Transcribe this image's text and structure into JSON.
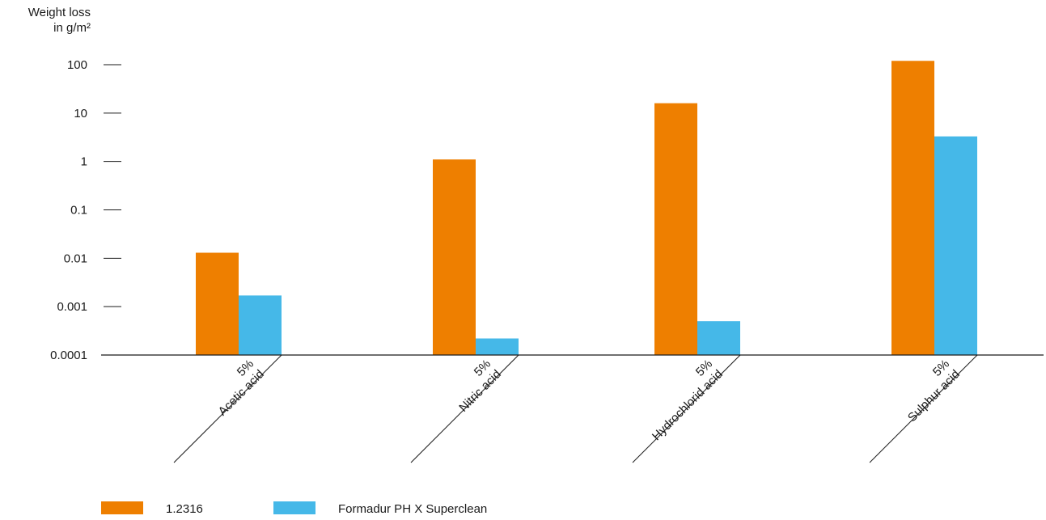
{
  "chart_data": {
    "type": "bar",
    "ylabel": [
      "Weight loss",
      "in g/m²"
    ],
    "yscale": "log",
    "ylim": [
      0.0001,
      100
    ],
    "yticks": [
      "100",
      "10",
      "1",
      "0.1",
      "0.01",
      "0.001",
      "0.0001"
    ],
    "ytick_values": [
      100,
      10,
      1,
      0.1,
      0.01,
      0.001,
      0.0001
    ],
    "categories": [
      [
        "5%",
        "Acetic acid"
      ],
      [
        "5%",
        "Nitric acid"
      ],
      [
        "5%",
        "Hydrochlorid acid"
      ],
      [
        "5%",
        "Sulphur acid"
      ]
    ],
    "series": [
      {
        "name": "1.2316",
        "color": "#ee7f00",
        "values": [
          0.013,
          1.1,
          16,
          120
        ]
      },
      {
        "name": "Formadur PH X Superclean",
        "color": "#45b8e8",
        "values": [
          0.0017,
          0.00022,
          0.0005,
          3.3
        ]
      }
    ],
    "legend_position": "bottom-left",
    "grid": false
  }
}
